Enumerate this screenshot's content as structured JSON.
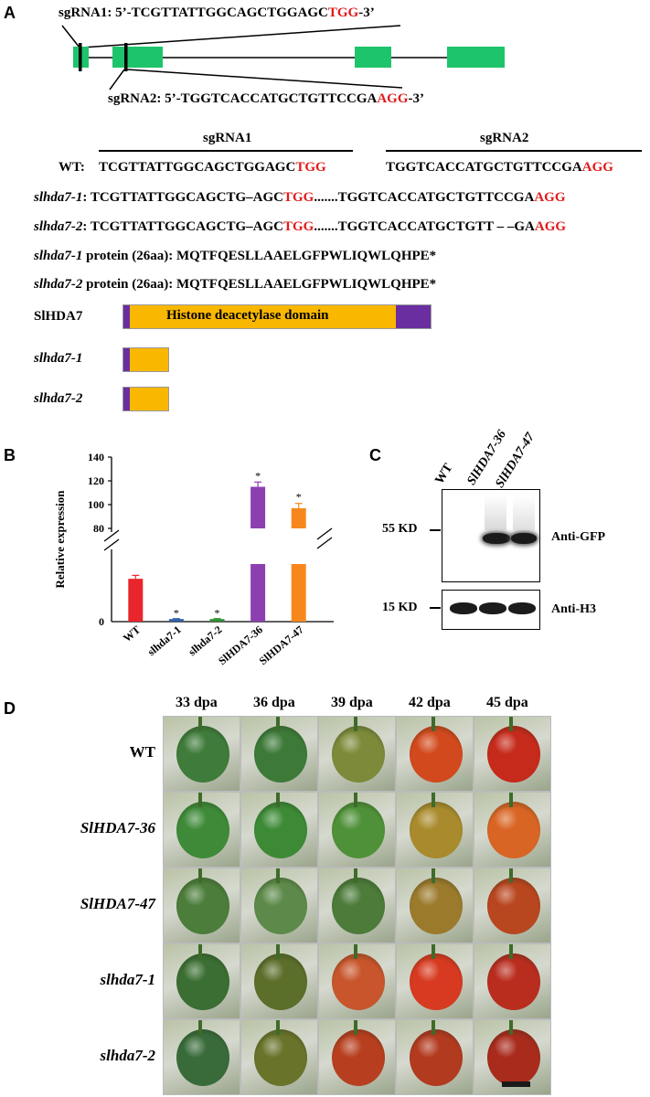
{
  "panels": {
    "a": "A",
    "b": "B",
    "c": "C",
    "d": "D"
  },
  "panel_a": {
    "sgrna1_prefix": "sgRNA1: 5’-TCGTTATTGGCAGCTGGAGC",
    "sgrna1_pam": "TGG",
    "sgrna1_suffix": "-3’",
    "sgrna2_prefix": "sgRNA2: 5’-TGGTCACCATGCTGTTCCGA",
    "sgrna2_pam": "AGG",
    "sgrna2_suffix": "-3’",
    "header_sgrna1": "sgRNA1",
    "header_sgrna2": "sgRNA2",
    "rows": [
      {
        "label": "WT:",
        "s1": "TCGTTATTGGCAGCTGGAGC",
        "p1": "TGG",
        "gap": "",
        "s2": "TGGTCACCATGCTGTTCCGA",
        "p2": "AGG"
      },
      {
        "label": "slhda7-1",
        "colon": ":",
        "s1": "TCGTTATTGGCAGCTG–AGC",
        "p1": "TGG",
        "gap": ".......",
        "s2": "TGGTCACCATGCTGTTCCGA",
        "p2": "AGG"
      },
      {
        "label": "slhda7-2",
        "colon": ":",
        "s1": "TCGTTATTGGCAGCTG–AGC",
        "p1": "TGG",
        "gap": ".......",
        "s2": "TGGTCACCATGCTGTT – –GA",
        "p2": "AGG"
      }
    ],
    "proteins": [
      {
        "label": "slhda7-1",
        "text": " protein (26aa): MQTFQESLLAAELGFPWLIQWLQHPE*"
      },
      {
        "label": "slhda7-2",
        "text": " protein (26aa): MQTFQESLLAAELGFPWLIQWLQHPE*"
      }
    ],
    "domain_rows": [
      {
        "label": "SlHDA7",
        "domain_text": "Histone deacetylase domain"
      },
      {
        "label": "slhda7-1"
      },
      {
        "label": "slhda7-2"
      }
    ],
    "colors": {
      "exon": "#1ec46b",
      "pam": "#e01b1b",
      "domain": "#f9b700",
      "terminal": "#6a2ea0"
    }
  },
  "chart_data": {
    "type": "bar",
    "ylabel": "Relative expression",
    "categories": [
      "WT",
      "slhda7-1",
      "slhda7-2",
      "SlHDA7-36",
      "SlHDA7-47"
    ],
    "values": [
      1,
      0.06,
      0.06,
      115,
      97
    ],
    "errors": [
      0.08,
      0.01,
      0.01,
      4,
      4
    ],
    "significance": [
      "",
      "*",
      "*",
      "*",
      "*"
    ],
    "colors": [
      "#e8262b",
      "#2e5fa8",
      "#2f8f35",
      "#8d3fb0",
      "#f7871d"
    ],
    "axis_break": true,
    "yticks_upper": [
      80,
      100,
      120,
      140
    ],
    "yticks_lower": [
      0
    ],
    "grid": false
  },
  "panel_c": {
    "lanes": [
      "WT",
      "SlHDA7-36",
      "SlHDA7-47"
    ],
    "markers": [
      "55 KD",
      "15 KD"
    ],
    "antibodies": [
      "Anti-GFP",
      "Anti-H3"
    ]
  },
  "panel_d": {
    "columns": [
      "33 dpa",
      "36 dpa",
      "39 dpa",
      "42 dpa",
      "45 dpa"
    ],
    "rows": [
      "WT",
      "SlHDA7-36",
      "SlHDA7-47",
      "slhda7-1",
      "slhda7-2"
    ],
    "fruit_colors": [
      [
        "#3f7b3a",
        "#3d7a38",
        "#7d8a3a",
        "#d2491d",
        "#c52a1b"
      ],
      [
        "#3e8a38",
        "#3c8a36",
        "#4f9138",
        "#a98b2d",
        "#d96524"
      ],
      [
        "#4c7d3b",
        "#5d8a4a",
        "#4c7b3a",
        "#9b7a2c",
        "#b8461f"
      ],
      [
        "#3b6e32",
        "#5b6e2a",
        "#c8552b",
        "#d73a20",
        "#b92d1f"
      ],
      [
        "#396b3a",
        "#69732a",
        "#b73f1f",
        "#b23a1f",
        "#a82b1c"
      ]
    ]
  }
}
